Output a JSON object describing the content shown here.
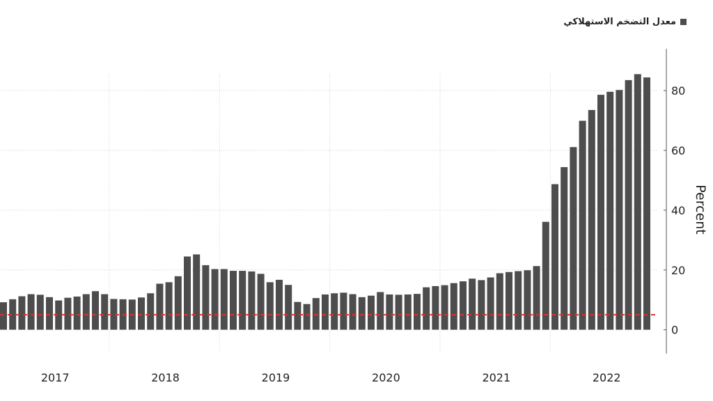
{
  "chart_data": {
    "type": "bar",
    "legend": "معدل التضخم الاستهلاكي",
    "ylabel": "Percent",
    "ylim": [
      -8,
      94
    ],
    "yticks": [
      0,
      20,
      40,
      60,
      80
    ],
    "reference_line": 5,
    "grid": true,
    "legend_position": "top-right",
    "year_labels": [
      "2017",
      "2018",
      "2019",
      "2020",
      "2021",
      "2022"
    ],
    "months_per_year": 12,
    "start_month_offset": 0,
    "colors": {
      "bar": "#4d4d4d",
      "reference": "#e03030",
      "grid": "#cfcfcf",
      "axis": "#555555"
    },
    "values": [
      9.2,
      10.2,
      11.2,
      11.9,
      11.7,
      10.9,
      9.8,
      10.7,
      11.1,
      11.9,
      12.9,
      11.9,
      10.3,
      10.2,
      10.1,
      10.8,
      12.2,
      15.4,
      15.9,
      17.9,
      24.5,
      25.2,
      21.6,
      20.3,
      20.3,
      19.7,
      19.7,
      19.5,
      18.7,
      15.9,
      16.7,
      15.0,
      9.3,
      8.6,
      10.6,
      11.8,
      12.2,
      12.4,
      11.9,
      10.9,
      11.4,
      12.6,
      11.8,
      11.7,
      11.8,
      12.0,
      14.2,
      14.6,
      14.9,
      15.6,
      16.2,
      17.1,
      16.6,
      17.5,
      18.9,
      19.3,
      19.6,
      19.9,
      21.3,
      36.1,
      48.7,
      54.4,
      61.1,
      69.9,
      73.5,
      78.6,
      79.6,
      80.2,
      83.5,
      85.5,
      84.4
    ]
  }
}
